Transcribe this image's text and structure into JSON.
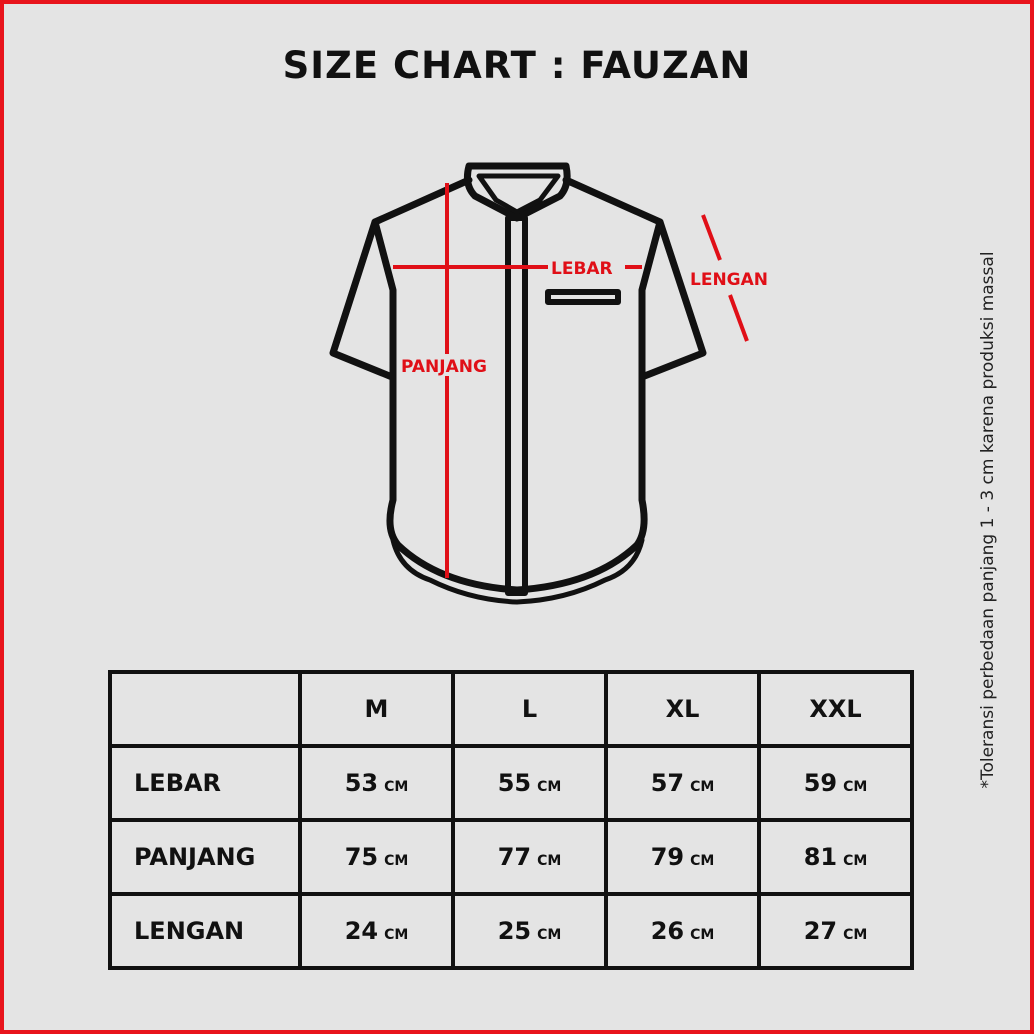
{
  "title": "SIZE CHART : FAUZAN",
  "diagram_labels": {
    "lebar": "LEBAR",
    "panjang": "PANJANG",
    "lengan": "LENGAN"
  },
  "note": "*Toleransi perbedaan panjang 1 - 3 cm karena produksi massal",
  "colors": {
    "accent": "#e00f17",
    "background": "#e4e4e4",
    "line": "#111111"
  },
  "table": {
    "headers": [
      "",
      "M",
      "L",
      "XL",
      "XXL"
    ],
    "unit": "CM",
    "rows": [
      {
        "label": "LEBAR",
        "values": [
          "53",
          "55",
          "57",
          "59"
        ]
      },
      {
        "label": "PANJANG",
        "values": [
          "75",
          "77",
          "79",
          "81"
        ]
      },
      {
        "label": "LENGAN",
        "values": [
          "24",
          "25",
          "26",
          "27"
        ]
      }
    ]
  }
}
